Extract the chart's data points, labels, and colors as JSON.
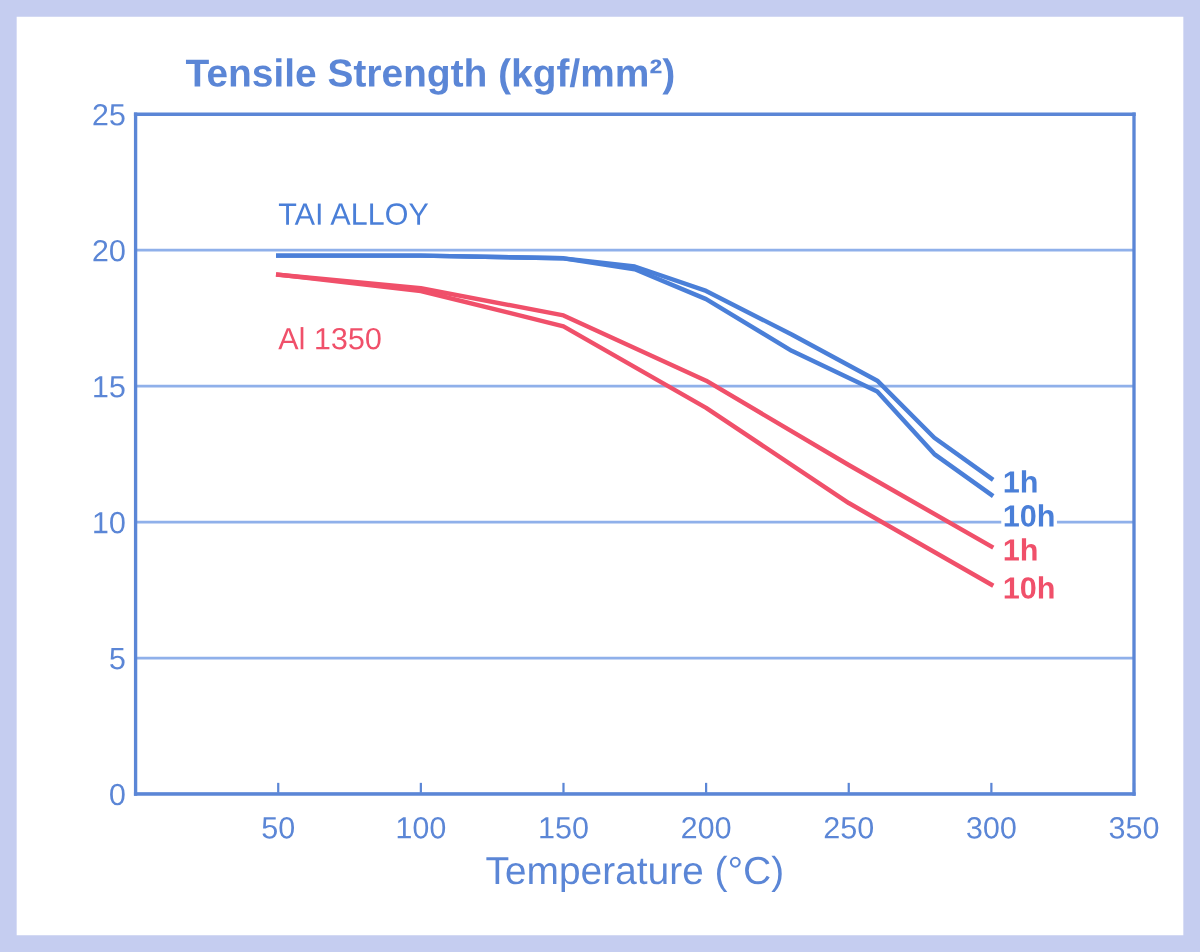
{
  "chart_data": {
    "type": "line",
    "title": "Tensile Strength (kgf/mm²)",
    "xlabel": "Temperature (°C)",
    "x": [
      50,
      100,
      150,
      175,
      200,
      230,
      260,
      280,
      300
    ],
    "series": [
      {
        "name": "1h",
        "color": "#4a7fd8",
        "values": [
          19.8,
          19.8,
          19.7,
          19.4,
          18.5,
          16.9,
          15.2,
          13.1,
          11.6
        ]
      },
      {
        "name": "10h",
        "color": "#4a7fd8",
        "values": [
          19.8,
          19.8,
          19.7,
          19.3,
          18.2,
          16.3,
          14.8,
          12.5,
          11.0
        ]
      },
      {
        "name": "1h",
        "color": "#f0506a",
        "x": [
          50,
          100,
          150,
          200,
          250,
          300
        ],
        "values": [
          19.1,
          18.6,
          17.6,
          15.2,
          12.1,
          9.1
        ]
      },
      {
        "name": "10h",
        "color": "#f0506a",
        "x": [
          50,
          100,
          150,
          200,
          250,
          300
        ],
        "values": [
          19.1,
          18.5,
          17.2,
          14.2,
          10.7,
          7.7
        ]
      }
    ],
    "annotations": [
      "TAI ALLOY",
      "Al 1350"
    ],
    "xlim": [
      0,
      350
    ],
    "xticks": [
      50,
      100,
      150,
      200,
      250,
      300,
      350
    ],
    "ylim": [
      0,
      25
    ],
    "yticks": [
      0,
      5,
      10,
      15,
      20,
      25
    ],
    "grid": "y",
    "legend": false,
    "marker": "none",
    "line_style": "solid"
  }
}
